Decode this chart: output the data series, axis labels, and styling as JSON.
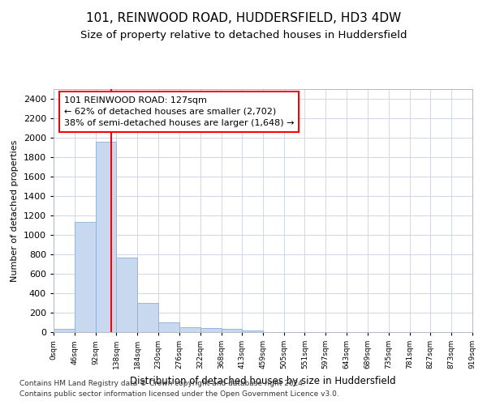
{
  "title": "101, REINWOOD ROAD, HUDDERSFIELD, HD3 4DW",
  "subtitle": "Size of property relative to detached houses in Huddersfield",
  "xlabel": "Distribution of detached houses by size in Huddersfield",
  "ylabel": "Number of detached properties",
  "footnote1": "Contains HM Land Registry data © Crown copyright and database right 2024.",
  "footnote2": "Contains public sector information licensed under the Open Government Licence v3.0.",
  "bar_edges": [
    0,
    46,
    92,
    138,
    184,
    230,
    276,
    322,
    368,
    413,
    459,
    505,
    551,
    597,
    643,
    689,
    735,
    781,
    827,
    873,
    919
  ],
  "bar_heights": [
    35,
    1130,
    1960,
    770,
    300,
    100,
    50,
    40,
    30,
    20,
    0,
    0,
    0,
    0,
    0,
    0,
    0,
    0,
    0,
    0
  ],
  "bar_color": "#c8d8ee",
  "bar_edgecolor": "#8ab0d8",
  "vline_x": 127,
  "vline_color": "red",
  "annotation_line1": "101 REINWOOD ROAD: 127sqm",
  "annotation_line2": "← 62% of detached houses are smaller (2,702)",
  "annotation_line3": "38% of semi-detached houses are larger (1,648) →",
  "annotation_box_color": "red",
  "ylim": [
    0,
    2500
  ],
  "yticks": [
    0,
    200,
    400,
    600,
    800,
    1000,
    1200,
    1400,
    1600,
    1800,
    2000,
    2200,
    2400
  ],
  "grid_color": "#d0d8e8",
  "bg_color": "#ffffff",
  "plot_bg_color": "#ffffff",
  "title_fontsize": 11,
  "subtitle_fontsize": 9.5,
  "footnote_fontsize": 6.5
}
